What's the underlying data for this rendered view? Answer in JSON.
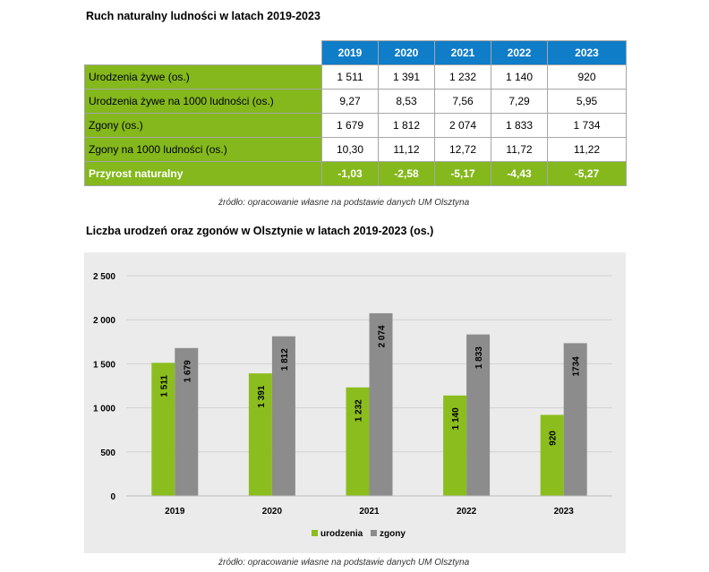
{
  "table": {
    "title": "Ruch naturalny ludności w latach 2019-2023",
    "years": [
      "2019",
      "2020",
      "2021",
      "2022",
      "2023"
    ],
    "rows": [
      {
        "label": "Urodzenia żywe (os.)",
        "values": [
          "1 511",
          "1 391",
          "1 232",
          "1 140",
          "920"
        ]
      },
      {
        "label": "Urodzenia żywe na 1000 ludności (os.)",
        "values": [
          "9,27",
          "8,53",
          "7,56",
          "7,29",
          "5,95"
        ]
      },
      {
        "label": "Zgony (os.)",
        "values": [
          "1 679",
          "1 812",
          "2 074",
          "1 833",
          "1 734"
        ]
      },
      {
        "label": "Zgony na 1000 ludności (os.)",
        "values": [
          "10,30",
          "11,12",
          "12,72",
          "11,72",
          "11,22"
        ]
      }
    ],
    "total": {
      "label": "Przyrost naturalny",
      "values": [
        "-1,03",
        "-2,58",
        "-5,17",
        "-4,43",
        "-5,27"
      ]
    },
    "source": "źródło: opracowanie własne na podstawie danych UM Olsztyna",
    "colors": {
      "header": "#0f7dc8",
      "label": "#84b81c"
    }
  },
  "chart": {
    "title": "Liczba urodzeń oraz zgonów w Olsztynie w latach 2019-2023 (os.)",
    "source": "źródło: opracowanie własne na podstawie danych UM Olsztyna"
  },
  "chart_data": {
    "type": "bar",
    "categories": [
      "2019",
      "2020",
      "2021",
      "2022",
      "2023"
    ],
    "series": [
      {
        "name": "urodzenia",
        "values": [
          1511,
          1391,
          1232,
          1140,
          920
        ],
        "labels": [
          "1 511",
          "1 391",
          "1 232",
          "1 140",
          "920"
        ],
        "color": "#8cbd1e"
      },
      {
        "name": "zgony",
        "values": [
          1679,
          1812,
          2074,
          1833,
          1734
        ],
        "labels": [
          "1 679",
          "1 812",
          "2 074",
          "1 833",
          "1734"
        ],
        "color": "#8c8c8c"
      }
    ],
    "yticks": [
      0,
      500,
      1000,
      1500,
      2000,
      2500
    ],
    "ytick_labels": [
      "0",
      "500",
      "1 000",
      "1 500",
      "2 000",
      "2 500"
    ],
    "ylim": [
      0,
      2500
    ],
    "grid": true,
    "legend": "bottom"
  }
}
